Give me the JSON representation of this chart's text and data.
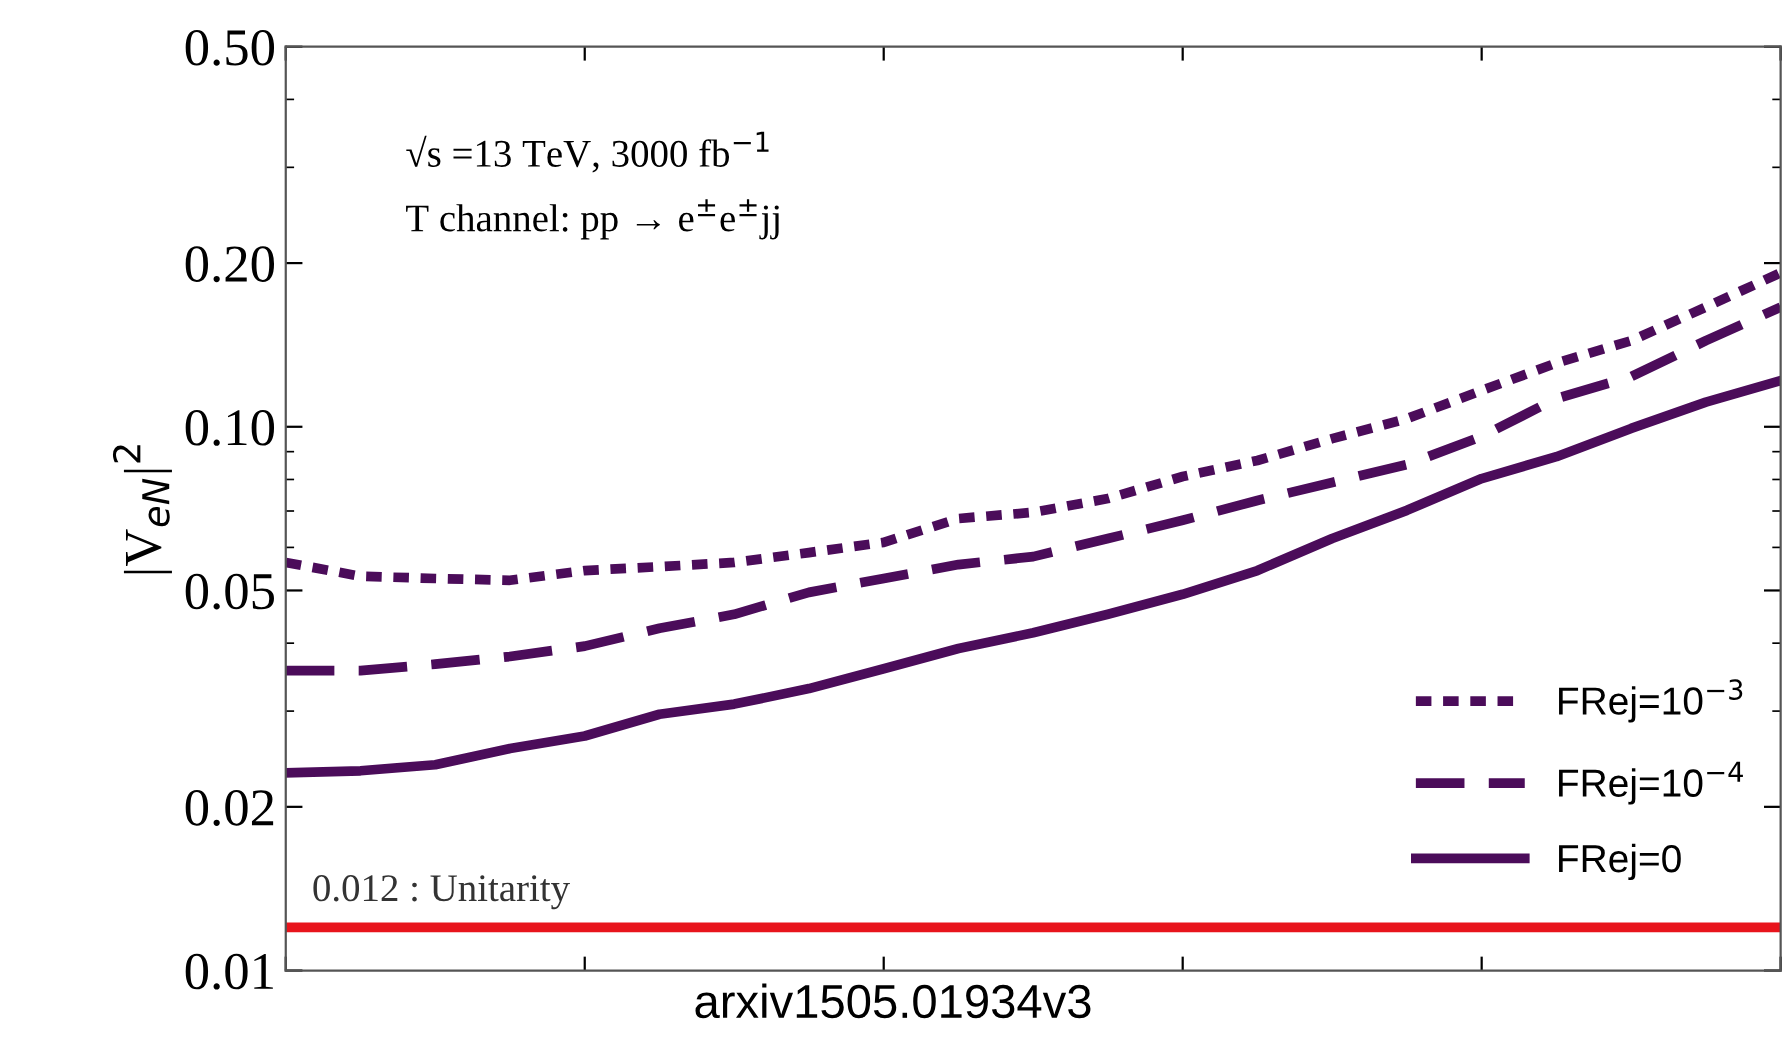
{
  "chart_data": {
    "type": "line",
    "ylabel": "|V$_{eN}$|$^{2}$",
    "categories": [
      null,
      null,
      null,
      null,
      null,
      null,
      null,
      null,
      null,
      null,
      null,
      null,
      null,
      null,
      null,
      null,
      null,
      null,
      null,
      null,
      null
    ],
    "series": [
      {
        "name": "FRej=10$^{−3}$",
        "color": "#4b0c5a",
        "line_style": "dotted",
        "values": [
          0.0563,
          0.0531,
          0.0526,
          0.0522,
          0.0544,
          0.0553,
          0.0563,
          0.0587,
          0.0613,
          0.0678,
          0.0696,
          0.0738,
          0.081,
          0.0867,
          0.0951,
          0.1035,
          0.1166,
          0.131,
          0.144,
          0.166,
          0.192
        ]
      },
      {
        "name": "FRej=10$^{−4}$",
        "color": "#4b0c5a",
        "line_style": "dashed",
        "values": [
          0.0356,
          0.0356,
          0.0366,
          0.0378,
          0.0395,
          0.0426,
          0.0452,
          0.0496,
          0.0526,
          0.0558,
          0.0577,
          0.0623,
          0.0673,
          0.0732,
          0.079,
          0.0852,
          0.096,
          0.1127,
          0.1237,
          0.144,
          0.166
        ]
      },
      {
        "name": "FRej=0",
        "color": "#4b0c5a",
        "line_style": "solid",
        "values": [
          0.0231,
          0.0233,
          0.0239,
          0.0256,
          0.027,
          0.0296,
          0.0309,
          0.033,
          0.0359,
          0.0391,
          0.0418,
          0.0452,
          0.0492,
          0.0544,
          0.0623,
          0.0702,
          0.0803,
          0.0881,
          0.0993,
          0.111,
          0.1216
        ]
      }
    ],
    "log": "y",
    "ylim": [
      0.01,
      0.5
    ],
    "yticks": [
      {
        "value": 0.01,
        "label": "0.01"
      },
      {
        "value": 0.02,
        "label": "0.02"
      },
      {
        "value": 0.05,
        "label": "0.05"
      },
      {
        "value": 0.1,
        "label": "0.10"
      },
      {
        "value": 0.2,
        "label": "0.20"
      },
      {
        "value": 0.5,
        "label": "0.50"
      }
    ],
    "tick_labels": "y",
    "ref_lines": [
      {
        "axis": "y",
        "value": 0.012,
        "label": "0.012 : Unitarity",
        "color": "#e8141c"
      }
    ],
    "annotations": [
      "√s =13 TeV, 3000 fb$^{−1}$",
      "T channel: pp → e$^{±}$e$^{±}$jj",
      "arxiv1505.01934v3"
    ],
    "legend": "bottom right",
    "grid": false
  }
}
